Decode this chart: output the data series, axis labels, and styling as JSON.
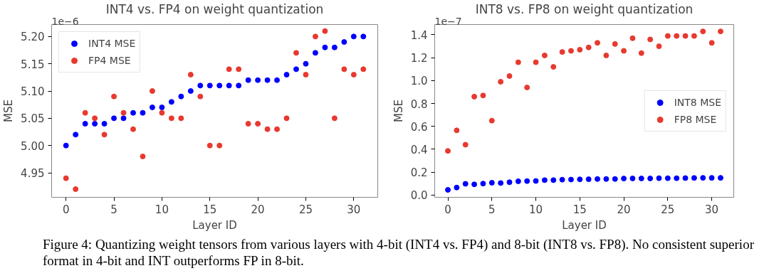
{
  "chart_data": [
    {
      "type": "scatter",
      "title": "INT4 vs. FP4 on weight quantization",
      "xlabel": "Layer ID",
      "ylabel": "MSE",
      "annotations": [
        "1e−6"
      ],
      "x": [
        0,
        1,
        2,
        3,
        4,
        5,
        6,
        7,
        8,
        9,
        10,
        11,
        12,
        13,
        14,
        15,
        16,
        17,
        18,
        19,
        20,
        21,
        22,
        23,
        24,
        25,
        26,
        27,
        28,
        29,
        30,
        31
      ],
      "series": [
        {
          "name": "INT4 MSE",
          "color": "#0000ff",
          "values": [
            5.0,
            5.02,
            5.04,
            5.04,
            5.04,
            5.05,
            5.05,
            5.06,
            5.06,
            5.07,
            5.07,
            5.08,
            5.09,
            5.1,
            5.11,
            5.11,
            5.11,
            5.11,
            5.11,
            5.12,
            5.12,
            5.12,
            5.12,
            5.13,
            5.14,
            5.15,
            5.17,
            5.18,
            5.18,
            5.19,
            5.2,
            5.2
          ]
        },
        {
          "name": "FP4 MSE",
          "color": "#e8392f",
          "values": [
            4.94,
            4.92,
            5.06,
            5.05,
            5.02,
            5.09,
            5.06,
            5.03,
            4.98,
            5.1,
            5.06,
            5.05,
            5.05,
            5.13,
            5.09,
            5.0,
            5.0,
            5.14,
            5.14,
            5.04,
            5.04,
            5.03,
            5.03,
            5.05,
            5.17,
            5.13,
            5.2,
            5.21,
            5.05,
            5.14,
            5.13,
            5.14
          ]
        }
      ],
      "xlim": [
        -1.5,
        32.5
      ],
      "xticks": [
        0,
        5,
        10,
        15,
        20,
        25,
        30
      ],
      "ylim": [
        4.905,
        5.222
      ],
      "yticks": [
        {
          "value": 4.95,
          "label": "4.95"
        },
        {
          "value": 5.0,
          "label": "5.00"
        },
        {
          "value": 5.05,
          "label": "5.05"
        },
        {
          "value": 5.1,
          "label": "5.10"
        },
        {
          "value": 5.15,
          "label": "5.15"
        },
        {
          "value": 5.2,
          "label": "5.20"
        }
      ],
      "marker": "circle",
      "legend": "top left",
      "grid": false
    },
    {
      "type": "scatter",
      "title": "INT8 vs. FP8 on weight quantization",
      "xlabel": "Layer ID",
      "ylabel": "MSE",
      "annotations": [
        "1e−7",
        "Figure 4: Quantizing weight tensors from various layers with 4-bit (INT4 vs. FP4) and 8-bit (INT8 vs. FP8). No consistent superior format in 4-bit and INT outperforms FP in 8-bit."
      ],
      "x": [
        0,
        1,
        2,
        3,
        4,
        5,
        6,
        7,
        8,
        9,
        10,
        11,
        12,
        13,
        14,
        15,
        16,
        17,
        18,
        19,
        20,
        21,
        22,
        23,
        24,
        25,
        26,
        27,
        28,
        29,
        30,
        31
      ],
      "series": [
        {
          "name": "INT8 MSE",
          "color": "#0000ff",
          "values": [
            0.045,
            0.065,
            0.098,
            0.093,
            0.1,
            0.107,
            0.105,
            0.112,
            0.12,
            0.122,
            0.123,
            0.13,
            0.13,
            0.134,
            0.135,
            0.137,
            0.138,
            0.14,
            0.14,
            0.14,
            0.144,
            0.145,
            0.145,
            0.145,
            0.147,
            0.147,
            0.147,
            0.148,
            0.149,
            0.15,
            0.15,
            0.15
          ]
        },
        {
          "name": "FP8 MSE",
          "color": "#e8392f",
          "values": [
            0.385,
            0.565,
            0.44,
            0.86,
            0.87,
            0.65,
            0.99,
            1.04,
            1.16,
            0.94,
            1.16,
            1.22,
            1.12,
            1.25,
            1.26,
            1.27,
            1.29,
            1.33,
            1.22,
            1.32,
            1.26,
            1.37,
            1.24,
            1.36,
            1.3,
            1.39,
            1.39,
            1.39,
            1.39,
            1.43,
            1.33,
            1.43
          ]
        }
      ],
      "xlim": [
        -1.5,
        32.5
      ],
      "xticks": [
        0,
        5,
        10,
        15,
        20,
        25,
        30
      ],
      "ylim": [
        -0.02,
        1.49
      ],
      "yticks": [
        {
          "value": 0,
          "label": "0.0"
        },
        0.2,
        0.4,
        0.6,
        0.8,
        {
          "value": 1,
          "label": "1.0"
        },
        1.2,
        1.4
      ],
      "marker": "circle",
      "legend": "right",
      "grid": false
    }
  ]
}
